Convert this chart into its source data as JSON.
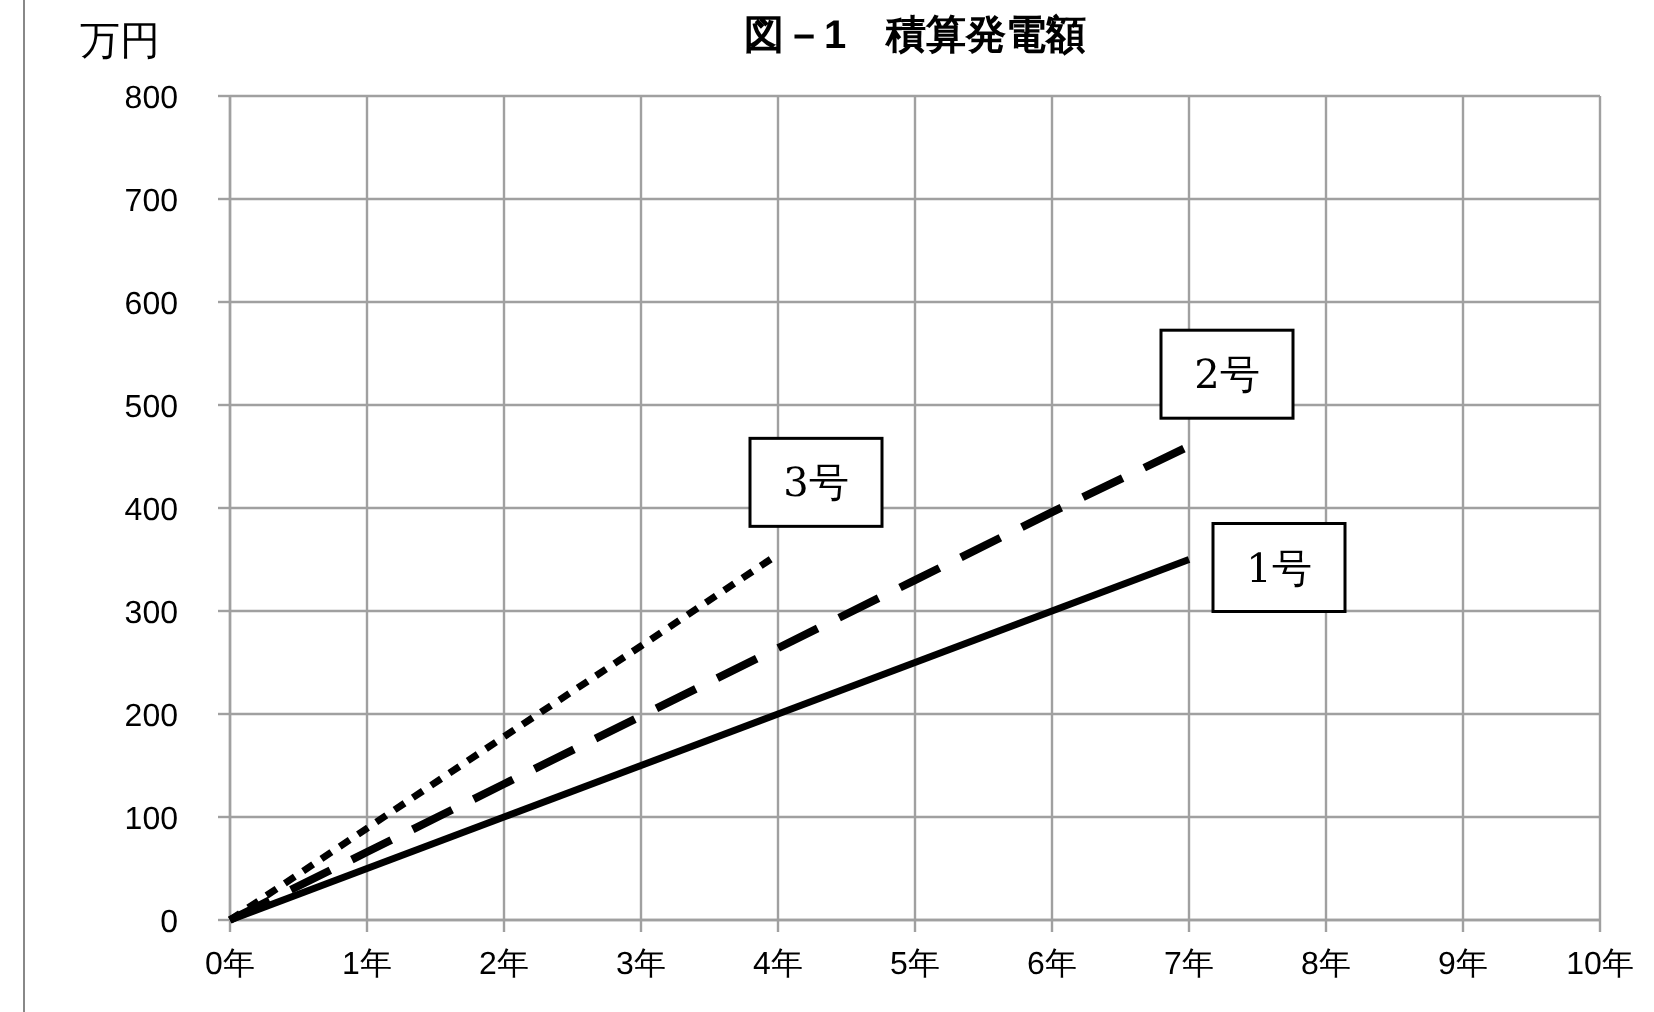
{
  "chart_data": {
    "type": "line",
    "title": "図－1　積算発電額",
    "ylabel": "万円",
    "x": [
      0,
      1,
      2,
      3,
      4,
      5,
      6,
      7
    ],
    "series": [
      {
        "name": "1号",
        "color": "#000000",
        "line_style": "solid",
        "values": [
          0,
          50,
          100,
          150,
          200,
          250,
          300,
          350
        ]
      },
      {
        "name": "2号",
        "color": "#000000",
        "line_style": "dashed",
        "values": [
          0,
          66,
          132,
          198,
          264,
          330,
          396,
          460
        ]
      },
      {
        "name": "3号",
        "color": "#000000",
        "line_style": "dotted",
        "x": [
          0,
          1,
          2,
          3,
          4
        ],
        "values": [
          0,
          89,
          178,
          266,
          355
        ]
      }
    ],
    "xlim": [
      0,
      10
    ],
    "xticks": [
      {
        "value": 0,
        "label": "0年"
      },
      {
        "value": 1,
        "label": "1年"
      },
      {
        "value": 2,
        "label": "2年"
      },
      {
        "value": 3,
        "label": "3年"
      },
      {
        "value": 4,
        "label": "4年"
      },
      {
        "value": 5,
        "label": "5年"
      },
      {
        "value": 6,
        "label": "6年"
      },
      {
        "value": 7,
        "label": "7年"
      },
      {
        "value": 8,
        "label": "8年"
      },
      {
        "value": 9,
        "label": "9年"
      },
      {
        "value": 10,
        "label": "10年"
      }
    ],
    "ylim": [
      0,
      800
    ],
    "yticks": [
      0,
      100,
      200,
      300,
      400,
      500,
      600,
      700,
      800
    ],
    "grid": true,
    "marker": "none"
  }
}
